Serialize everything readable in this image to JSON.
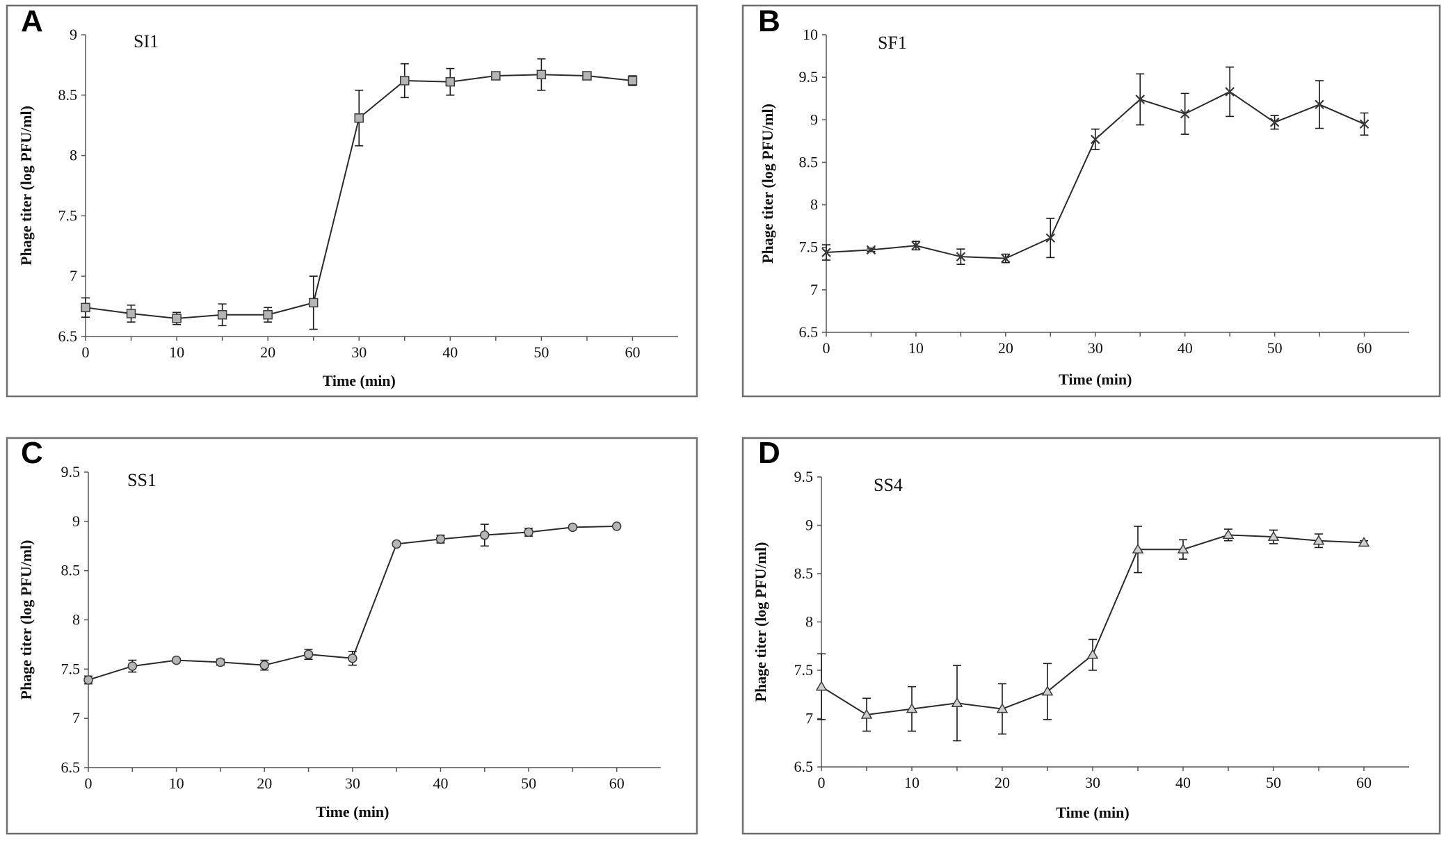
{
  "chart_data": [
    {
      "type": "line",
      "panel": "A",
      "series_name": "SI1",
      "marker": "square",
      "xlabel": "Time (min)",
      "ylabel": "Phage titer (log PFU/ml)",
      "xlim": [
        0,
        65
      ],
      "ylim": [
        6.5,
        9
      ],
      "xticks": [
        "0",
        "10",
        "20",
        "30",
        "40",
        "50",
        "60"
      ],
      "yticks": [
        "6.5",
        "7",
        "7.5",
        "8",
        "8.5",
        "9"
      ],
      "x": [
        0,
        5,
        10,
        15,
        20,
        25,
        30,
        35,
        40,
        45,
        50,
        55,
        60
      ],
      "y": [
        6.74,
        6.69,
        6.65,
        6.68,
        6.68,
        6.78,
        8.31,
        8.62,
        8.61,
        8.66,
        8.67,
        8.66,
        8.62
      ],
      "err": [
        0.08,
        0.07,
        0.05,
        0.09,
        0.06,
        0.22,
        0.23,
        0.14,
        0.11,
        0.03,
        0.13,
        0.01,
        0.04
      ]
    },
    {
      "type": "line",
      "panel": "B",
      "series_name": "SF1",
      "marker": "x",
      "xlabel": "Time (min)",
      "ylabel": "Phage titer (log PFU/ml)",
      "xlim": [
        0,
        65
      ],
      "ylim": [
        6.5,
        10
      ],
      "xticks": [
        "0",
        "10",
        "20",
        "30",
        "40",
        "50",
        "60"
      ],
      "yticks": [
        "6.5",
        "7",
        "7.5",
        "8",
        "8.5",
        "9",
        "9.5",
        "10"
      ],
      "x": [
        0,
        5,
        10,
        15,
        20,
        25,
        30,
        35,
        40,
        45,
        50,
        55,
        60
      ],
      "y": [
        7.44,
        7.47,
        7.52,
        7.39,
        7.37,
        7.61,
        8.77,
        9.24,
        9.07,
        9.33,
        8.97,
        9.18,
        8.95
      ],
      "err": [
        0.09,
        0.02,
        0.05,
        0.09,
        0.05,
        0.23,
        0.12,
        0.3,
        0.24,
        0.29,
        0.08,
        0.28,
        0.13
      ]
    },
    {
      "type": "line",
      "panel": "C",
      "series_name": "SS1",
      "marker": "circle",
      "xlabel": "Time (min)",
      "ylabel": "Phage titer (log PFU/ml)",
      "xlim": [
        0,
        65
      ],
      "ylim": [
        6.5,
        9.5
      ],
      "xticks": [
        "0",
        "10",
        "20",
        "30",
        "40",
        "50",
        "60"
      ],
      "yticks": [
        "6.5",
        "7",
        "7.5",
        "8",
        "8.5",
        "9",
        "9.5"
      ],
      "x": [
        0,
        5,
        10,
        15,
        20,
        25,
        30,
        35,
        40,
        45,
        50,
        55,
        60
      ],
      "y": [
        7.39,
        7.53,
        7.59,
        7.57,
        7.54,
        7.65,
        7.61,
        8.77,
        8.82,
        8.86,
        8.89,
        8.94,
        8.95
      ],
      "err": [
        0.04,
        0.06,
        0.02,
        0.03,
        0.05,
        0.05,
        0.07,
        0.02,
        0.04,
        0.11,
        0.04,
        0.02,
        0.01
      ]
    },
    {
      "type": "line",
      "panel": "D",
      "series_name": "SS4",
      "marker": "triangle",
      "xlabel": "Time (min)",
      "ylabel": "Phage titer (log PFU/ml)",
      "xlim": [
        0,
        65
      ],
      "ylim": [
        6.5,
        9.5
      ],
      "xticks": [
        "0",
        "10",
        "20",
        "30",
        "40",
        "50",
        "60"
      ],
      "yticks": [
        "6.5",
        "7",
        "7.5",
        "8",
        "8.5",
        "9",
        "9.5"
      ],
      "x": [
        0,
        5,
        10,
        15,
        20,
        25,
        30,
        35,
        40,
        45,
        50,
        55,
        60
      ],
      "y": [
        7.33,
        7.04,
        7.1,
        7.16,
        7.1,
        7.28,
        7.66,
        8.75,
        8.75,
        8.9,
        8.88,
        8.84,
        8.82
      ],
      "err": [
        0.34,
        0.17,
        0.23,
        0.39,
        0.26,
        0.29,
        0.16,
        0.24,
        0.1,
        0.06,
        0.07,
        0.07,
        0.02
      ]
    }
  ]
}
